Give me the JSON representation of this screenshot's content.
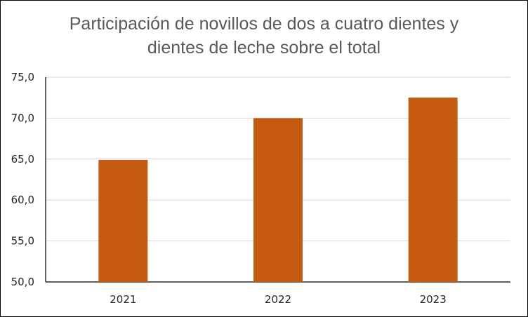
{
  "chart_data": {
    "type": "bar",
    "title_lines": [
      "Participación  de novillos  de dos a cuatro dientes y",
      "dientes de leche sobre el total"
    ],
    "categories": [
      "2021",
      "2022",
      "2023"
    ],
    "values": [
      64.9,
      70.0,
      72.5
    ],
    "ylim": [
      50,
      75
    ],
    "yticks": [
      "50,0",
      "55,0",
      "60,0",
      "65,0",
      "70,0",
      "75,0"
    ],
    "xlabel": "",
    "ylabel": "",
    "grid": true,
    "legend": "none",
    "bar_color": "#C55A11",
    "grid_color": "#D9D9D9"
  }
}
